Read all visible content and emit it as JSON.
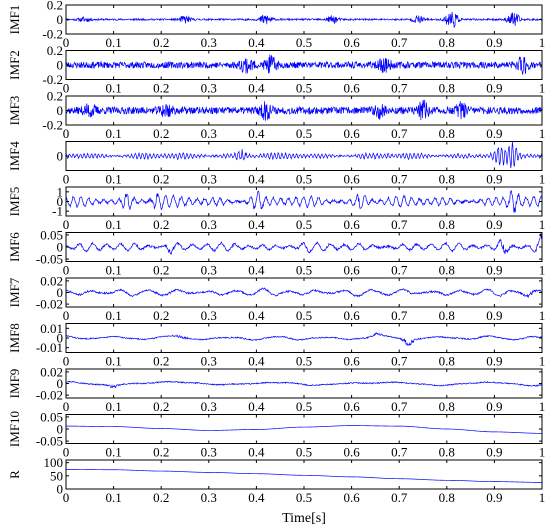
{
  "chart_data": {
    "type": "line",
    "xlabel": "Time[s]",
    "xlim": [
      0,
      1
    ],
    "x_ticks": [
      "0",
      "0.1",
      "0.2",
      "0.3",
      "0.4",
      "0.5",
      "0.6",
      "0.7",
      "0.8",
      "0.9",
      "1"
    ],
    "line_color": "#0000ff",
    "panels": [
      {
        "ylabel": "IMF1",
        "ylim": [
          -0.2,
          0.2
        ],
        "y_ticks": [
          {
            "value": 0.2,
            "label": "0.2"
          },
          {
            "value": 0,
            "label": "0"
          },
          {
            "value": -0.2,
            "label": "-0.2"
          }
        ],
        "kind": "noise",
        "amp": 0.012,
        "seed": 11,
        "bursts": [
          [
            0.04,
            0.03
          ],
          [
            0.25,
            0.05
          ],
          [
            0.42,
            0.08
          ],
          [
            0.56,
            0.05
          ],
          [
            0.74,
            0.05
          ],
          [
            0.81,
            0.13
          ],
          [
            0.94,
            0.1
          ]
        ]
      },
      {
        "ylabel": "IMF2",
        "ylim": [
          -0.2,
          0.2
        ],
        "y_ticks": [
          {
            "value": 0.2,
            "label": "0.2"
          },
          {
            "value": 0,
            "label": "0"
          },
          {
            "value": -0.2,
            "label": "-0.2"
          }
        ],
        "kind": "noise",
        "amp": 0.045,
        "seed": 23,
        "bursts": [
          [
            0.38,
            0.1
          ],
          [
            0.43,
            0.1
          ],
          [
            0.67,
            0.08
          ],
          [
            0.96,
            0.11
          ]
        ]
      },
      {
        "ylabel": "IMF3",
        "ylim": [
          -0.2,
          0.2
        ],
        "y_ticks": [
          {
            "value": 0.2,
            "label": "0.2"
          },
          {
            "value": 0,
            "label": "0"
          },
          {
            "value": -0.2,
            "label": "-0.2"
          }
        ],
        "kind": "noise",
        "amp": 0.05,
        "seed": 37,
        "bursts": [
          [
            0.05,
            0.07
          ],
          [
            0.21,
            0.08
          ],
          [
            0.42,
            0.1
          ],
          [
            0.66,
            0.08
          ],
          [
            0.75,
            0.11
          ],
          [
            0.83,
            0.08
          ]
        ]
      },
      {
        "ylabel": "IMF4",
        "ylim": [
          -0.2,
          0.2
        ],
        "y_ticks": [
          {
            "value": 0,
            "label": "0"
          }
        ],
        "kind": "osc",
        "amp": 0.045,
        "freq": 130,
        "seed": 41,
        "bursts": [
          [
            0.37,
            0.1
          ],
          [
            0.91,
            0.12
          ],
          [
            0.94,
            0.14
          ]
        ]
      },
      {
        "ylabel": "IMF5",
        "ylim": [
          -1.5,
          1.5
        ],
        "y_ticks": [
          {
            "value": 1,
            "label": "1"
          },
          {
            "value": 0,
            "label": "0"
          },
          {
            "value": -1,
            "label": "-1"
          }
        ],
        "kind": "osc",
        "amp": 0.55,
        "freq": 62,
        "seed": 53,
        "bursts": [
          [
            0.13,
            0.9
          ],
          [
            0.19,
            0.8
          ],
          [
            0.4,
            1.1
          ],
          [
            0.62,
            0.8
          ],
          [
            0.94,
            1.2
          ]
        ]
      },
      {
        "ylabel": "IMF6",
        "ylim": [
          -0.06,
          0.06
        ],
        "y_ticks": [
          {
            "value": 0.05,
            "label": "0.05"
          },
          {
            "value": 0,
            "label": "0"
          },
          {
            "value": -0.05,
            "label": "-0.05"
          }
        ],
        "kind": "osc",
        "amp": 0.018,
        "freq": 34,
        "seed": 67,
        "bursts": [
          [
            0.22,
            0.028
          ],
          [
            0.5,
            0.02
          ],
          [
            0.92,
            0.035
          ],
          [
            1.0,
            0.035
          ]
        ]
      },
      {
        "ylabel": "IMF7",
        "ylim": [
          -0.025,
          0.025
        ],
        "y_ticks": [
          {
            "value": 0.02,
            "label": "0.02"
          },
          {
            "value": 0,
            "label": "0"
          },
          {
            "value": -0.02,
            "label": "-0.02"
          }
        ],
        "kind": "osc",
        "amp": 0.0065,
        "freq": 17,
        "seed": 71,
        "bursts": [
          [
            0.97,
            0.01
          ]
        ]
      },
      {
        "ylabel": "IMF8",
        "ylim": [
          -0.015,
          0.015
        ],
        "y_ticks": [
          {
            "value": 0.01,
            "label": "0.01"
          },
          {
            "value": 0,
            "label": "0"
          },
          {
            "value": -0.01,
            "label": "-0.01"
          }
        ],
        "kind": "osc",
        "amp": 0.0025,
        "freq": 9,
        "seed": 83,
        "bursts": [
          [
            0.24,
            0.004
          ],
          [
            0.65,
            0.004
          ],
          [
            0.72,
            0.01
          ]
        ]
      },
      {
        "ylabel": "IMF9",
        "ylim": [
          -0.025,
          0.025
        ],
        "y_ticks": [
          {
            "value": 0.02,
            "label": "0.02"
          },
          {
            "value": 0,
            "label": "0"
          },
          {
            "value": -0.02,
            "label": "-0.02"
          }
        ],
        "kind": "osc",
        "amp": 0.004,
        "freq": 4.5,
        "seed": 97,
        "bursts": [
          [
            0.1,
            0.005
          ]
        ]
      },
      {
        "ylabel": "IMF10",
        "ylim": [
          -0.06,
          0.06
        ],
        "y_ticks": [
          {
            "value": 0.05,
            "label": "0.05"
          },
          {
            "value": 0,
            "label": "0"
          },
          {
            "value": -0.05,
            "label": "-0.05"
          }
        ],
        "kind": "points",
        "points": [
          [
            0,
            0.012
          ],
          [
            0.1,
            0.01
          ],
          [
            0.2,
            0.002
          ],
          [
            0.3,
            -0.006
          ],
          [
            0.4,
            -0.002
          ],
          [
            0.5,
            0.008
          ],
          [
            0.6,
            0.014
          ],
          [
            0.7,
            0.012
          ],
          [
            0.8,
            0.0
          ],
          [
            0.9,
            -0.012
          ],
          [
            1.0,
            -0.018
          ]
        ]
      },
      {
        "ylabel": "R",
        "ylim": [
          0,
          110
        ],
        "y_ticks": [
          {
            "value": 100,
            "label": "100"
          },
          {
            "value": 50,
            "label": "50"
          },
          {
            "value": 0,
            "label": "0"
          }
        ],
        "kind": "points",
        "points": [
          [
            0,
            74
          ],
          [
            0.1,
            73
          ],
          [
            0.2,
            68
          ],
          [
            0.3,
            63
          ],
          [
            0.4,
            58
          ],
          [
            0.5,
            52
          ],
          [
            0.6,
            46
          ],
          [
            0.7,
            39
          ],
          [
            0.8,
            33
          ],
          [
            0.9,
            28
          ],
          [
            1.0,
            25
          ]
        ]
      }
    ]
  }
}
